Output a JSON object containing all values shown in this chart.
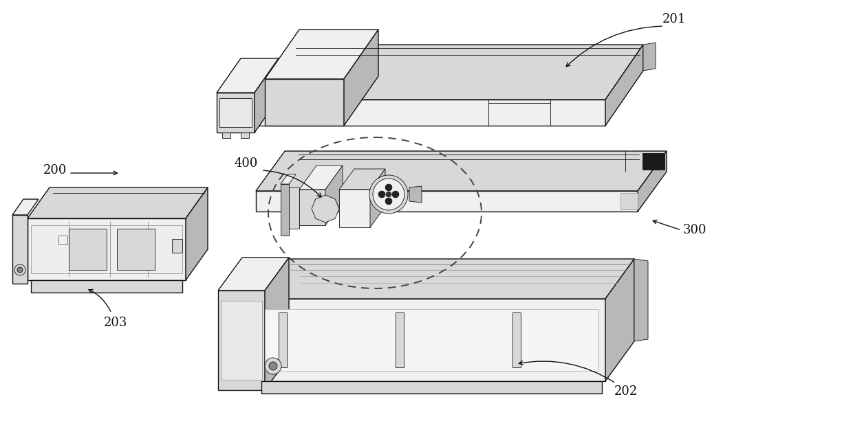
{
  "background_color": "#ffffff",
  "line_color": "#111111",
  "fill_light": "#f0f0f0",
  "fill_mid": "#d8d8d8",
  "fill_dark": "#b8b8b8",
  "fill_darkest": "#222222",
  "figsize": [
    12.4,
    6.48
  ],
  "dpi": 100,
  "lw_main": 1.0,
  "lw_thin": 0.6,
  "label_fontsize": 13
}
